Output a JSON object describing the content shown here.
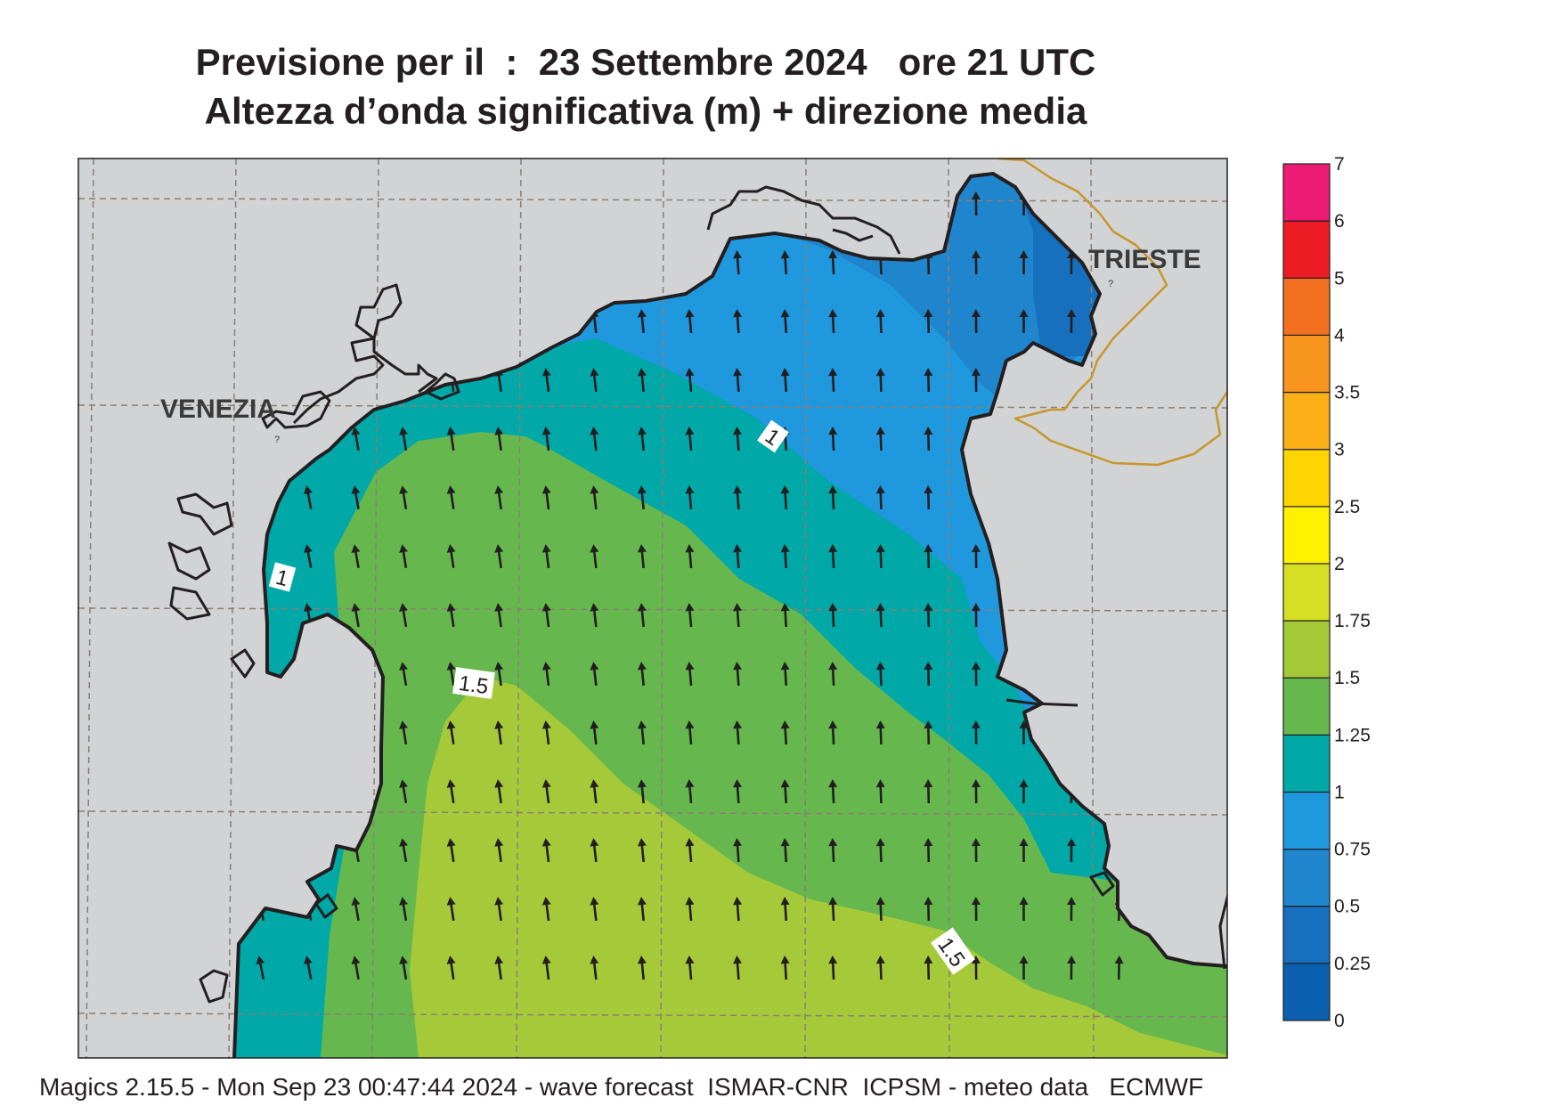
{
  "title": {
    "line1": "Previsione per il  :  23 Settembre 2024   ore 21 UTC",
    "line2": "Altezza d’onda significativa (m) + direzione media"
  },
  "cities": [
    {
      "name": "VENEZIA"
    },
    {
      "name": "TRIESTE"
    }
  ],
  "contour_labels": [
    "1",
    "1",
    "1.5",
    "1.5"
  ],
  "legend": {
    "levels": [
      "0",
      "0.25",
      "0.5",
      "0.75",
      "1",
      "1.25",
      "1.5",
      "1.75",
      "2",
      "2.5",
      "3",
      "3.5",
      "4",
      "5",
      "6",
      "7"
    ],
    "colors": [
      "#0a5fae",
      "#1670bd",
      "#1f85cc",
      "#1f98de",
      "#00a8a8",
      "#66b84e",
      "#a6c93a",
      "#d7df24",
      "#fff200",
      "#ffd500",
      "#fcaf17",
      "#f7941d",
      "#f37021",
      "#ed1c24",
      "#ec1c74"
    ]
  },
  "colors": {
    "land": "#d2d3d5",
    "coast": "#231f20",
    "border": "#c8962b",
    "grid": "#8a7f76"
  },
  "wave_direction": "north-northwest",
  "footer": "Magics 2.15.5 - Mon Sep 23 00:47:44 2024 - wave forecast  ISMAR-CNR  ICPSM - meteo data   ECMWF"
}
